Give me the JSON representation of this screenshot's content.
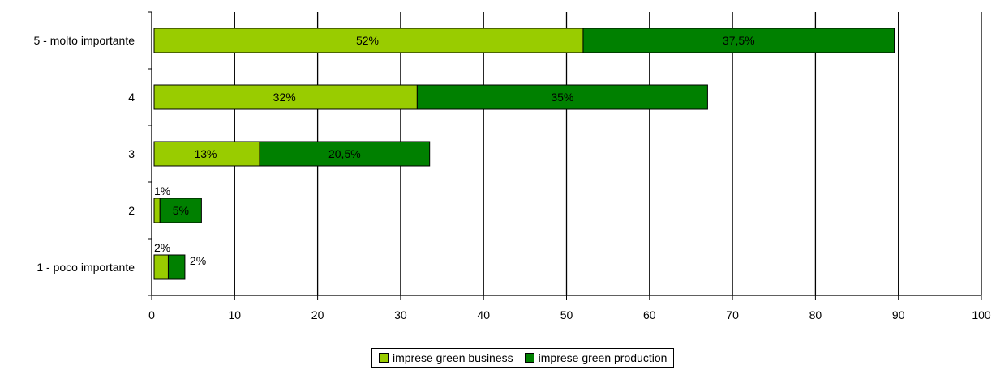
{
  "chart_data": {
    "type": "bar",
    "orientation": "horizontal",
    "stacked": true,
    "categories": [
      "5 - molto importante",
      "4",
      "3",
      "2",
      "1 - poco importante"
    ],
    "series": [
      {
        "name": "imprese green business",
        "color": "#99CC00",
        "values": [
          52,
          32,
          13,
          1,
          2
        ],
        "labels": [
          "52%",
          "32%",
          "13%",
          "1%",
          "2%"
        ]
      },
      {
        "name": "imprese green production",
        "color": "#008000",
        "values": [
          37.5,
          35,
          20.5,
          5,
          2
        ],
        "labels": [
          "37,5%",
          "35%",
          "20,5%",
          "5%",
          "2%"
        ]
      }
    ],
    "xlim": [
      0,
      100
    ],
    "xticks": [
      "0",
      "10",
      "20",
      "30",
      "40",
      "50",
      "60",
      "70",
      "80",
      "90",
      "100"
    ],
    "grid": true,
    "legend_position": "bottom"
  }
}
